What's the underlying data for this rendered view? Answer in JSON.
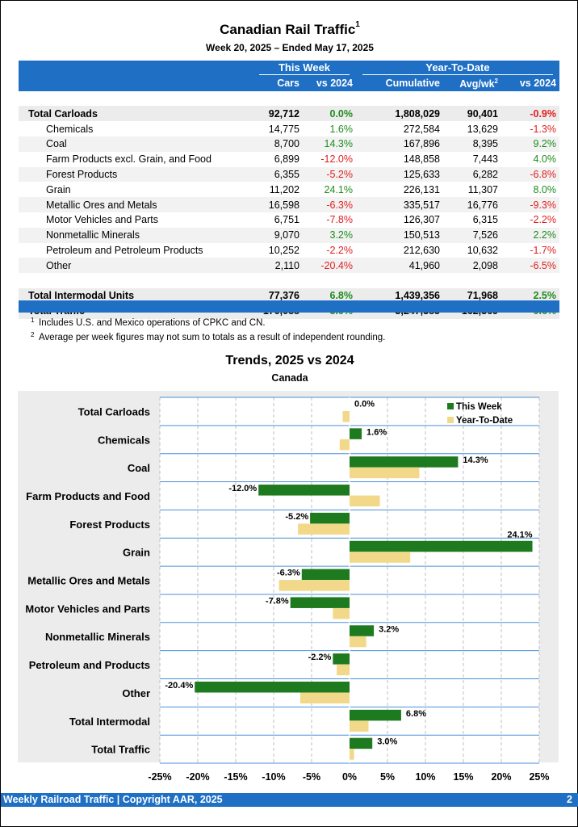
{
  "header": {
    "title": "Canadian Rail Traffic",
    "title_sup": "1",
    "subtitle": "Week 20, 2025 – Ended May 17, 2025"
  },
  "table": {
    "group_this_week": "This Week",
    "group_ytd": "Year-To-Date",
    "col_cars": "Cars",
    "col_vs2024": "vs 2024",
    "col_cumulative": "Cumulative",
    "col_avg": "Avg/wk",
    "col_avg_sup": "2",
    "col_vs2024_ytd": "vs 2024",
    "rows": [
      {
        "label": "Total Carloads",
        "cars": "92,712",
        "vs": "0.0%",
        "cum": "1,808,029",
        "avg": "90,401",
        "vs_ytd": "-0.9%",
        "kind": "total"
      },
      {
        "label": "Chemicals",
        "cars": "14,775",
        "vs": "1.6%",
        "cum": "272,584",
        "avg": "13,629",
        "vs_ytd": "-1.3%",
        "kind": "sub"
      },
      {
        "label": "Coal",
        "cars": "8,700",
        "vs": "14.3%",
        "cum": "167,896",
        "avg": "8,395",
        "vs_ytd": "9.2%",
        "kind": "sub"
      },
      {
        "label": "Farm Products excl. Grain, and Food",
        "cars": "6,899",
        "vs": "-12.0%",
        "cum": "148,858",
        "avg": "7,443",
        "vs_ytd": "4.0%",
        "kind": "sub"
      },
      {
        "label": "Forest Products",
        "cars": "6,355",
        "vs": "-5.2%",
        "cum": "125,633",
        "avg": "6,282",
        "vs_ytd": "-6.8%",
        "kind": "sub"
      },
      {
        "label": "Grain",
        "cars": "11,202",
        "vs": "24.1%",
        "cum": "226,131",
        "avg": "11,307",
        "vs_ytd": "8.0%",
        "kind": "sub"
      },
      {
        "label": "Metallic Ores and Metals",
        "cars": "16,598",
        "vs": "-6.3%",
        "cum": "335,517",
        "avg": "16,776",
        "vs_ytd": "-9.3%",
        "kind": "sub"
      },
      {
        "label": "Motor Vehicles and Parts",
        "cars": "6,751",
        "vs": "-7.8%",
        "cum": "126,307",
        "avg": "6,315",
        "vs_ytd": "-2.2%",
        "kind": "sub"
      },
      {
        "label": "Nonmetallic Minerals",
        "cars": "9,070",
        "vs": "3.2%",
        "cum": "150,513",
        "avg": "7,526",
        "vs_ytd": "2.2%",
        "kind": "sub"
      },
      {
        "label": "Petroleum and Petroleum Products",
        "cars": "10,252",
        "vs": "-2.2%",
        "cum": "212,630",
        "avg": "10,632",
        "vs_ytd": "-1.7%",
        "kind": "sub"
      },
      {
        "label": "Other",
        "cars": "2,110",
        "vs": "-20.4%",
        "cum": "41,960",
        "avg": "2,098",
        "vs_ytd": "-6.5%",
        "kind": "sub"
      },
      {
        "label": "Total Intermodal Units",
        "cars": "77,376",
        "vs": "6.8%",
        "cum": "1,439,356",
        "avg": "71,968",
        "vs_ytd": "2.5%",
        "kind": "total"
      },
      {
        "label": "Total Traffic",
        "cars": "170,088",
        "vs": "3.0%",
        "cum": "3,247,385",
        "avg": "162,369",
        "vs_ytd": "0.6%",
        "kind": "total"
      }
    ]
  },
  "notes": [
    {
      "sup": "1",
      "text": "Includes U.S. and Mexico operations of CPKC and CN."
    },
    {
      "sup": "2",
      "text": "Average per week figures may not sum to totals as a result of independent rounding."
    }
  ],
  "colors": {
    "header_blue": "#1f6fc4",
    "this_week": "#1e7a1e",
    "ytd": "#f2d98a",
    "negative": "#e02020",
    "positive": "#1e8c1e"
  },
  "chart_data": {
    "type": "bar",
    "orientation": "horizontal",
    "title": "Trends, 2025 vs 2024",
    "subtitle": "Canada",
    "categories": [
      "Total Carloads",
      "Chemicals",
      "Coal",
      "Farm Products and Food",
      "Forest Products",
      "Grain",
      "Metallic Ores and Metals",
      "Motor Vehicles and Parts",
      "Nonmetallic Minerals",
      "Petroleum and Products",
      "Other",
      "Total Intermodal",
      "Total Traffic"
    ],
    "series": [
      {
        "name": "This Week",
        "values": [
          0.0,
          1.6,
          14.3,
          -12.0,
          -5.2,
          24.1,
          -6.3,
          -7.8,
          3.2,
          -2.2,
          -20.4,
          6.8,
          3.0
        ],
        "labels": [
          "0.0%",
          "1.6%",
          "14.3%",
          "-12.0%",
          "-5.2%",
          "24.1%",
          "-6.3%",
          "-7.8%",
          "3.2%",
          "-2.2%",
          "-20.4%",
          "6.8%",
          "3.0%"
        ]
      },
      {
        "name": "Year-To-Date",
        "values": [
          -0.9,
          -1.3,
          9.2,
          4.0,
          -6.8,
          8.0,
          -9.3,
          -2.2,
          2.2,
          -1.7,
          -6.5,
          2.5,
          0.6
        ]
      }
    ],
    "xlim": [
      -25,
      25
    ],
    "xticks": [
      -25,
      -20,
      -15,
      -10,
      -5,
      0,
      5,
      10,
      15,
      20,
      25
    ],
    "xtick_labels": [
      "-25%",
      "-20%",
      "-15%",
      "-10%",
      "-5%",
      "0%",
      "5%",
      "10%",
      "15%",
      "20%",
      "25%"
    ],
    "legend": "top-right",
    "grid": true
  },
  "footer": {
    "text": "Weekly Railroad Traffic | Copyright AAR, 2025",
    "page": "2"
  }
}
